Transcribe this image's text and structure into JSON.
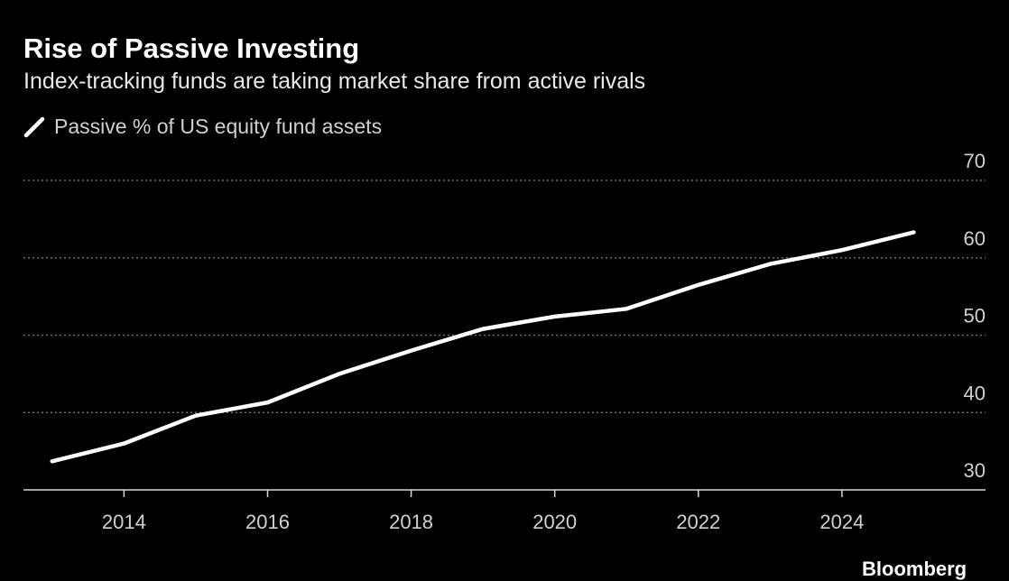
{
  "header": {
    "title": "Rise of Passive Investing",
    "subtitle": "Index-tracking funds are taking market share from active rivals"
  },
  "legend": {
    "label": "Passive % of US equity fund assets"
  },
  "source": "Bloomberg",
  "colors": {
    "background": "#000000",
    "line": "#ffffff",
    "grid": "#6e6e6e",
    "text": "#d0d0d0"
  },
  "chart_data": {
    "type": "line",
    "title": "Rise of Passive Investing",
    "subtitle": "Index-tracking funds are taking market share from active rivals",
    "xlabel": "",
    "ylabel": "",
    "x": [
      2013,
      2014,
      2015,
      2016,
      2017,
      2018,
      2019,
      2020,
      2021,
      2022,
      2023,
      2024,
      2025
    ],
    "x_ticks": [
      2014,
      2016,
      2018,
      2020,
      2022,
      2024
    ],
    "y_ticks": [
      30,
      40,
      50,
      60,
      70
    ],
    "ylim": [
      30,
      70
    ],
    "xlim": [
      2012.6,
      2026.0
    ],
    "y_axis_side": "right",
    "grid": "horizontal dotted",
    "legend_position": "top-left",
    "series": [
      {
        "name": "Passive % of US equity fund assets",
        "values": [
          33.7,
          36.0,
          39.6,
          41.3,
          45.0,
          48.0,
          50.8,
          52.4,
          53.4,
          56.5,
          59.2,
          61.0,
          63.3
        ]
      }
    ]
  }
}
